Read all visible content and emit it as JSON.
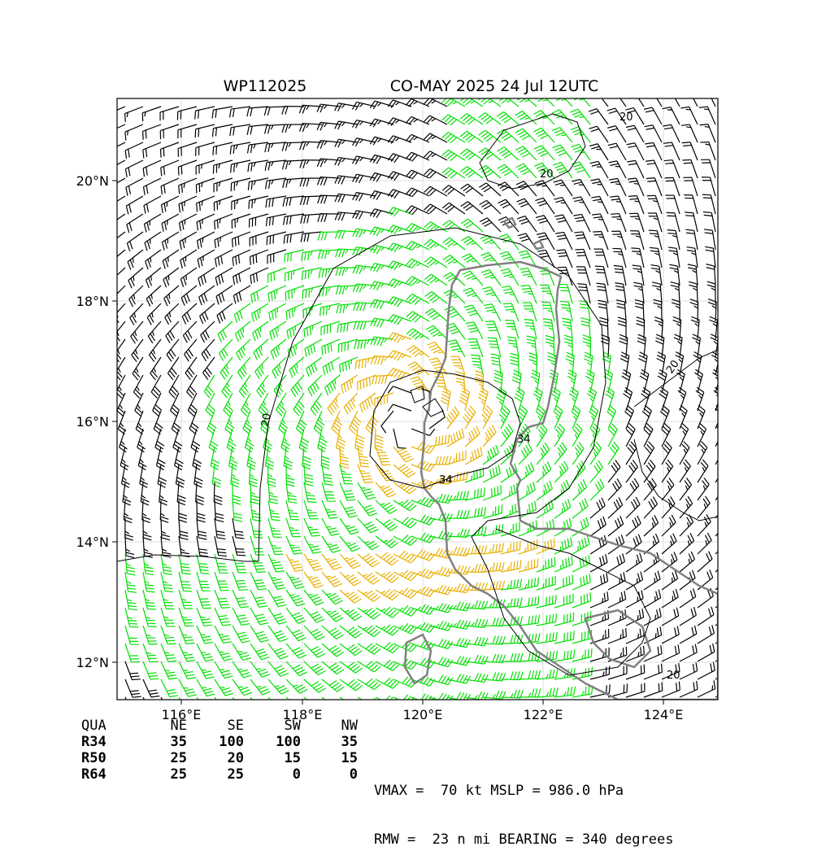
{
  "title_left": "WP112025",
  "title_right": "CO-MAY 2025 24 Jul 12UTC",
  "axes": {
    "x_ticks": [
      "116°E",
      "118°E",
      "120°E",
      "122°E",
      "124°E"
    ],
    "y_ticks": [
      "20°N",
      "18°N",
      "16°N",
      "14°N",
      "12°N"
    ],
    "lon_range": [
      115,
      125
    ],
    "lat_range": [
      11.4,
      21.4
    ]
  },
  "storm_center": {
    "lon": 119.9,
    "lat": 16.1
  },
  "contour_labels": [
    "20",
    "20",
    "34",
    "34",
    "20",
    "20",
    "20"
  ],
  "colors": {
    "calm": "#000000",
    "gale_34kt": "#00e000",
    "storm_50kt": "#e8b000",
    "hurricane_64kt": "#ff6a00",
    "coast": "#808080",
    "contour": "#000000"
  },
  "wind_radii": {
    "headers": [
      "QUA",
      "NE",
      "SE",
      "SW",
      "NW"
    ],
    "rows": [
      {
        "label": "R34",
        "values": [
          "35",
          "100",
          "100",
          "35"
        ]
      },
      {
        "label": "R50",
        "values": [
          "25",
          "20",
          "15",
          "15"
        ]
      },
      {
        "label": "R64",
        "values": [
          "25",
          "25",
          "0",
          "0"
        ]
      }
    ]
  },
  "info": {
    "line1": "VMAX =  70 kt MSLP = 986.0 hPa",
    "line2": "RMW =  23 n mi BEARING = 340 degrees"
  }
}
